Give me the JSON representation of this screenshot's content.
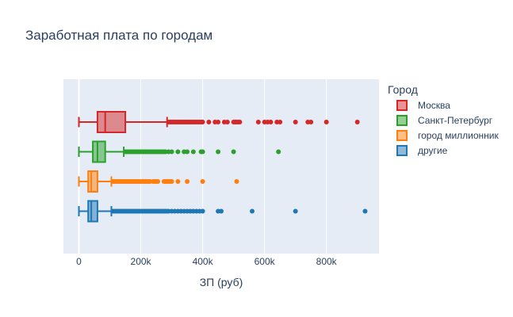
{
  "chart_data": {
    "type": "box",
    "orientation": "horizontal",
    "title": "Заработная плата по городам",
    "xlabel": "ЗП (руб)",
    "ylabel": "",
    "xlim": [
      -50000,
      970000
    ],
    "xticks": [
      0,
      200000,
      400000,
      600000,
      800000
    ],
    "xtick_labels": [
      "0",
      "200k",
      "400k",
      "600k",
      "800k"
    ],
    "grid": true,
    "legend": {
      "title": "Город",
      "placement": "right"
    },
    "series": [
      {
        "name": "Москва",
        "color": "#d62728",
        "min": 0,
        "q1": 60000,
        "median": 85000,
        "q3": 150000,
        "max": 285000,
        "outliers": [
          290000,
          295000,
          300000,
          305000,
          310000,
          315000,
          320000,
          325000,
          330000,
          335000,
          340000,
          345000,
          350000,
          355000,
          360000,
          365000,
          370000,
          375000,
          380000,
          385000,
          390000,
          395000,
          400000,
          420000,
          440000,
          450000,
          470000,
          480000,
          500000,
          505000,
          510000,
          515000,
          520000,
          580000,
          600000,
          610000,
          620000,
          640000,
          650000,
          700000,
          740000,
          750000,
          800000,
          900000
        ]
      },
      {
        "name": "Санкт-Петербург",
        "color": "#2ca02c",
        "min": 0,
        "q1": 45000,
        "median": 60000,
        "q3": 85000,
        "max": 145000,
        "outliers": [
          150000,
          155000,
          160000,
          165000,
          170000,
          175000,
          180000,
          185000,
          190000,
          195000,
          200000,
          205000,
          210000,
          215000,
          220000,
          225000,
          230000,
          235000,
          240000,
          245000,
          250000,
          255000,
          260000,
          265000,
          270000,
          275000,
          280000,
          290000,
          300000,
          320000,
          340000,
          350000,
          370000,
          395000,
          400000,
          450000,
          500000,
          645000
        ]
      },
      {
        "name": "город миллионник",
        "color": "#ff7f0e",
        "min": 0,
        "q1": 30000,
        "median": 40000,
        "q3": 60000,
        "max": 105000,
        "outliers": [
          110000,
          115000,
          120000,
          125000,
          130000,
          135000,
          140000,
          145000,
          150000,
          155000,
          160000,
          165000,
          170000,
          175000,
          180000,
          185000,
          190000,
          195000,
          200000,
          205000,
          210000,
          215000,
          220000,
          225000,
          230000,
          240000,
          245000,
          250000,
          255000,
          275000,
          280000,
          285000,
          290000,
          295000,
          300000,
          320000,
          350000,
          400000,
          510000
        ]
      },
      {
        "name": "другие",
        "color": "#1f77b4",
        "min": 0,
        "q1": 30000,
        "median": 40000,
        "q3": 60000,
        "max": 105000,
        "outliers": [
          110000,
          115000,
          120000,
          125000,
          130000,
          135000,
          140000,
          145000,
          150000,
          155000,
          160000,
          165000,
          170000,
          175000,
          180000,
          185000,
          190000,
          195000,
          200000,
          205000,
          210000,
          215000,
          220000,
          225000,
          230000,
          235000,
          240000,
          245000,
          250000,
          255000,
          260000,
          265000,
          270000,
          275000,
          280000,
          285000,
          290000,
          300000,
          310000,
          320000,
          330000,
          340000,
          350000,
          360000,
          370000,
          380000,
          390000,
          400000,
          450000,
          460000,
          560000,
          700000,
          925000
        ]
      }
    ]
  }
}
